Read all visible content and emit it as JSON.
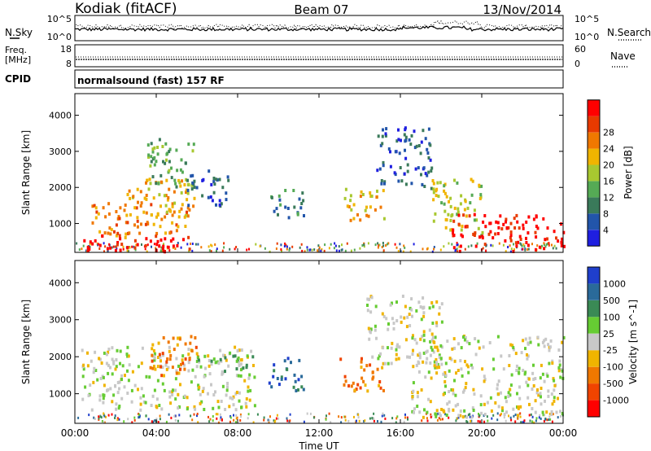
{
  "header": {
    "station": "Kodiak (fitACF)",
    "beam": "Beam 07",
    "date": "13/Nov/2014"
  },
  "side_labels": {
    "nsky": "N.Sky",
    "nsearch": "N.Search",
    "freq_line1": "Freq.",
    "freq_line2": "[MHz]",
    "nave": "Nave",
    "cpid": "CPID",
    "cpid_value": "normalsound (fast) 157 RF"
  },
  "small_panels": {
    "noise_left_ticks": [
      "10^5",
      "10^0"
    ],
    "noise_right_ticks": [
      "10^5",
      "10^0"
    ],
    "freq_left_ticks": [
      "18",
      "8"
    ],
    "freq_right_ticks": [
      "60",
      "0"
    ]
  },
  "chart_data": [
    {
      "type": "heatmap",
      "name": "power",
      "ylabel": "Slant Range [km]",
      "yticks": [
        "1000",
        "2000",
        "3000",
        "4000"
      ],
      "ylim": [
        200,
        4600
      ],
      "xlim": [
        0,
        24
      ],
      "colorbar": {
        "label": "Power [dB]",
        "ticks": [
          "4",
          "8",
          "12",
          "16",
          "20",
          "24",
          "28"
        ],
        "colors": [
          "#1f1fe0",
          "#2255aa",
          "#3a7a5a",
          "#55aa55",
          "#a8c830",
          "#f0b400",
          "#f07800",
          "#e83a00",
          "#ff0000"
        ]
      },
      "regions": [
        {
          "t0": 0.2,
          "t1": 5.8,
          "r0": 250,
          "r1": 700,
          "level": 28
        },
        {
          "t0": 0.8,
          "t1": 5.6,
          "r0": 650,
          "r1": 1600,
          "level": 22
        },
        {
          "t0": 2.5,
          "t1": 6.0,
          "r0": 1200,
          "r1": 2300,
          "level": 18
        },
        {
          "t0": 3.5,
          "t1": 5.8,
          "r0": 2000,
          "r1": 3400,
          "level": 12
        },
        {
          "t0": 5.5,
          "t1": 7.5,
          "r0": 1500,
          "r1": 2500,
          "level": 6
        },
        {
          "t0": 9.5,
          "t1": 11.2,
          "r0": 1200,
          "r1": 2000,
          "level": 10
        },
        {
          "t0": 13.2,
          "t1": 15.2,
          "r0": 1100,
          "r1": 2000,
          "level": 20
        },
        {
          "t0": 14.8,
          "t1": 17.5,
          "r0": 2000,
          "r1": 3700,
          "level": 7
        },
        {
          "t0": 17.5,
          "t1": 20.0,
          "r0": 700,
          "r1": 2300,
          "level": 16
        },
        {
          "t0": 18.5,
          "t1": 24.0,
          "r0": 250,
          "r1": 1300,
          "level": 28
        }
      ]
    },
    {
      "type": "heatmap",
      "name": "velocity",
      "ylabel": "Slant Range [km]",
      "yticks": [
        "1000",
        "2000",
        "3000",
        "4000"
      ],
      "ylim": [
        200,
        4600
      ],
      "xlabel": "Time UT",
      "xticks": [
        "00:00",
        "04:00",
        "08:00",
        "12:00",
        "16:00",
        "20:00",
        "00:00"
      ],
      "xlim": [
        0,
        24
      ],
      "colorbar": {
        "label": "Velocity [m s^-1]",
        "ticks": [
          "1000",
          "500",
          "100",
          "25",
          "-25",
          "-100",
          "-500",
          "-1000"
        ],
        "colors": [
          "#1f3fcc",
          "#2a6a9a",
          "#3a8a55",
          "#66cc33",
          "#c8c8c8",
          "#f0b400",
          "#f07800",
          "#f04400",
          "#ff0000"
        ]
      },
      "regions": [
        {
          "t0": 0.3,
          "t1": 8.8,
          "r0": 600,
          "r1": 2300,
          "level": 0
        },
        {
          "t0": 3.5,
          "t1": 6.0,
          "r0": 1500,
          "r1": 2600,
          "level": -200
        },
        {
          "t0": 5.8,
          "t1": 8.8,
          "r0": 1500,
          "r1": 2100,
          "level": 150
        },
        {
          "t0": 9.5,
          "t1": 11.2,
          "r0": 1100,
          "r1": 2000,
          "level": 300
        },
        {
          "t0": 13.0,
          "t1": 15.2,
          "r0": 1100,
          "r1": 2000,
          "level": -150
        },
        {
          "t0": 14.3,
          "t1": 18.0,
          "r0": 1800,
          "r1": 3700,
          "level": 0
        },
        {
          "t0": 16.5,
          "t1": 24.0,
          "r0": 400,
          "r1": 2600,
          "level": 0
        }
      ]
    }
  ]
}
